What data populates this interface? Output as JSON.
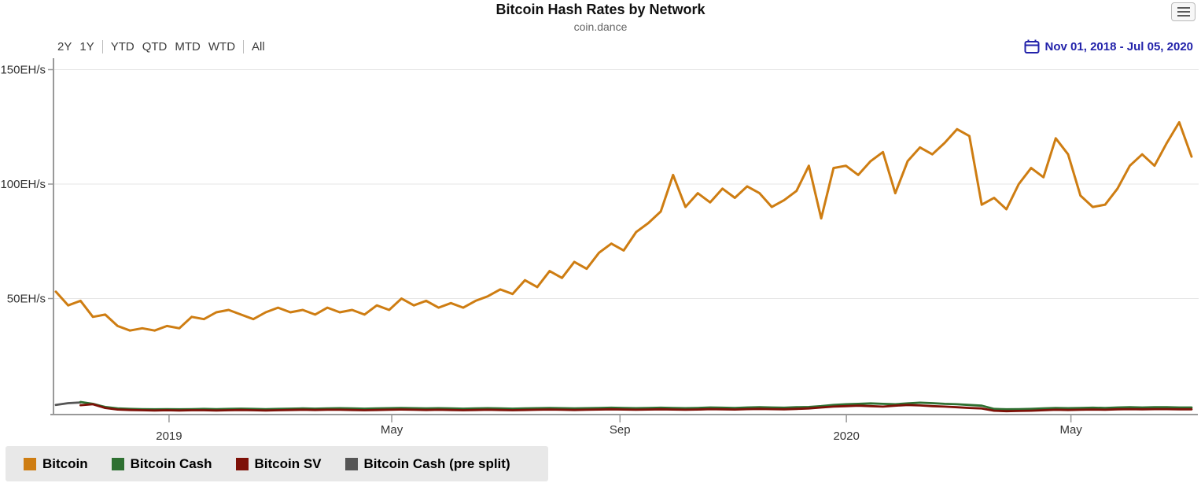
{
  "header": {
    "menu_icon": "hamburger-menu-icon"
  },
  "toolbar": {
    "range_groups": [
      [
        "2Y",
        "1Y"
      ],
      [
        "YTD",
        "QTD",
        "MTD",
        "WTD"
      ],
      [
        "All"
      ]
    ],
    "date_range": "Nov 01, 2018 - Jul 05, 2020",
    "calendar_icon": "calendar-icon"
  },
  "legend": {
    "items": [
      {
        "label": "Bitcoin",
        "color": "#CE7D12"
      },
      {
        "label": "Bitcoin Cash",
        "color": "#2E7031"
      },
      {
        "label": "Bitcoin SV",
        "color": "#7D1007"
      },
      {
        "label": "Bitcoin Cash (pre split)",
        "color": "#555555"
      }
    ]
  },
  "colors": {
    "date_text": "#2222AA",
    "axis": "#999999",
    "grid": "#E6E6E6",
    "axis_label": "#333333",
    "legend_bg": "#E8E8E8"
  },
  "chart_data": {
    "type": "line",
    "title": "Bitcoin Hash Rates by Network",
    "subtitle": "coin.dance",
    "xlabel": "",
    "ylabel": "",
    "unit": "EH/s",
    "x_start": "Nov 01, 2018",
    "x_end": "Jul 05, 2020",
    "total_days": 612,
    "point_interval": "weekly",
    "grid": true,
    "legend_position": "bottom-left",
    "ylim": [
      0,
      157
    ],
    "y_ticks": [
      {
        "label": "50EH/s",
        "value": 50
      },
      {
        "label": "100EH/s",
        "value": 100
      },
      {
        "label": "150EH/s",
        "value": 150
      }
    ],
    "x_ticks": [
      {
        "label": "2019",
        "day": 61,
        "type": "year"
      },
      {
        "label": "May",
        "day": 181,
        "type": "month"
      },
      {
        "label": "Sep",
        "day": 304,
        "type": "month"
      },
      {
        "label": "2020",
        "day": 426,
        "type": "year"
      },
      {
        "label": "May",
        "day": 547,
        "type": "month"
      }
    ],
    "series": [
      {
        "name": "Bitcoin",
        "color": "#CE7D12",
        "values": [
          53,
          47,
          49,
          42,
          43,
          38,
          36,
          37,
          36,
          38,
          37,
          42,
          41,
          44,
          45,
          43,
          41,
          44,
          46,
          44,
          45,
          43,
          46,
          44,
          45,
          43,
          47,
          45,
          50,
          47,
          49,
          46,
          48,
          46,
          49,
          51,
          54,
          52,
          58,
          55,
          62,
          59,
          66,
          63,
          70,
          74,
          71,
          79,
          83,
          88,
          104,
          90,
          96,
          92,
          98,
          94,
          99,
          96,
          90,
          93,
          97,
          108,
          85,
          107,
          108,
          104,
          110,
          114,
          96,
          110,
          116,
          113,
          118,
          124,
          121,
          91,
          94,
          89,
          100,
          107,
          103,
          120,
          113,
          95,
          90,
          91,
          98,
          108,
          113,
          108,
          118,
          127,
          112
        ]
      },
      {
        "name": "Bitcoin Cash",
        "color": "#2E7031",
        "values": [
          null,
          null,
          4.8,
          4.0,
          2.6,
          2.0,
          1.8,
          1.7,
          1.6,
          1.7,
          1.6,
          1.7,
          1.8,
          1.7,
          1.8,
          1.9,
          1.8,
          1.7,
          1.8,
          1.9,
          2.0,
          1.9,
          2.0,
          2.1,
          2.0,
          1.9,
          2.0,
          2.1,
          2.2,
          2.1,
          2.0,
          2.1,
          2.0,
          1.9,
          2.0,
          2.1,
          2.0,
          1.9,
          2.0,
          2.1,
          2.2,
          2.1,
          2.0,
          2.1,
          2.2,
          2.3,
          2.2,
          2.1,
          2.2,
          2.3,
          2.2,
          2.1,
          2.2,
          2.4,
          2.3,
          2.2,
          2.4,
          2.5,
          2.4,
          2.3,
          2.5,
          2.6,
          3.0,
          3.5,
          3.8,
          4.0,
          4.2,
          4.0,
          3.8,
          4.2,
          4.5,
          4.3,
          4.0,
          3.8,
          3.5,
          3.2,
          1.8,
          1.6,
          1.7,
          1.8,
          2.0,
          2.2,
          2.1,
          2.2,
          2.3,
          2.2,
          2.4,
          2.5,
          2.4,
          2.5,
          2.5,
          2.4,
          2.4
        ]
      },
      {
        "name": "Bitcoin SV",
        "color": "#7D1007",
        "values": [
          null,
          null,
          3.4,
          3.8,
          2.2,
          1.5,
          1.3,
          1.2,
          1.1,
          1.2,
          1.1,
          1.2,
          1.2,
          1.1,
          1.2,
          1.3,
          1.2,
          1.1,
          1.2,
          1.3,
          1.4,
          1.3,
          1.4,
          1.4,
          1.3,
          1.2,
          1.3,
          1.4,
          1.5,
          1.4,
          1.3,
          1.4,
          1.3,
          1.2,
          1.3,
          1.4,
          1.3,
          1.2,
          1.3,
          1.4,
          1.5,
          1.4,
          1.3,
          1.4,
          1.5,
          1.6,
          1.5,
          1.4,
          1.5,
          1.6,
          1.5,
          1.4,
          1.5,
          1.7,
          1.6,
          1.5,
          1.7,
          1.8,
          1.7,
          1.6,
          1.8,
          2.0,
          2.4,
          2.8,
          3.0,
          3.2,
          3.0,
          2.8,
          3.2,
          3.5,
          3.3,
          3.0,
          2.8,
          2.5,
          2.2,
          2.0,
          1.0,
          0.8,
          0.9,
          1.0,
          1.2,
          1.4,
          1.3,
          1.4,
          1.5,
          1.4,
          1.6,
          1.7,
          1.6,
          1.7,
          1.7,
          1.6,
          1.6
        ]
      },
      {
        "name": "Bitcoin Cash (pre split)",
        "color": "#555555",
        "values": [
          3.5,
          4.3,
          4.6
        ]
      }
    ]
  }
}
